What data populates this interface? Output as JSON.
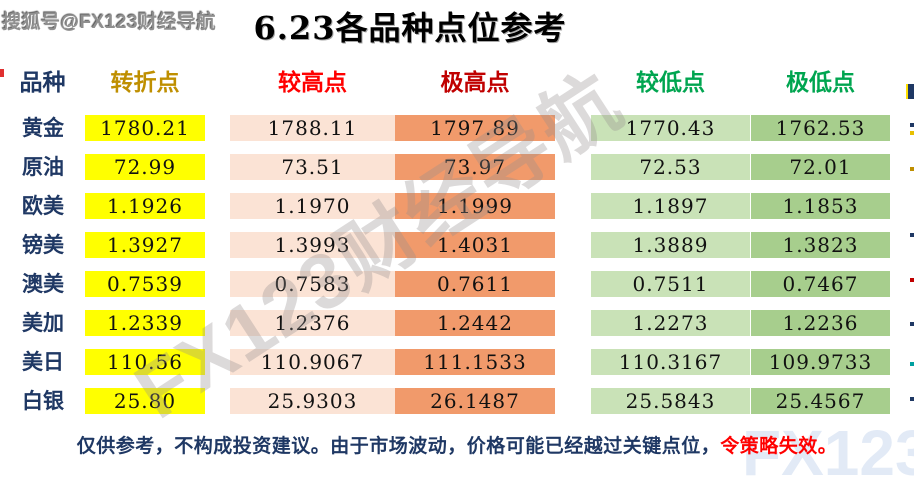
{
  "header": {
    "title": "6.23各品种点位参考"
  },
  "watermarks": {
    "sohu": "搜狐号@FX123财经导航",
    "diagonal": "FX123财经导航",
    "corner": "FX123"
  },
  "table": {
    "headers": {
      "variety": "品种",
      "turning": "转折点",
      "higher": "较高点",
      "extreme_high": "极高点",
      "lower": "较低点",
      "extreme_low": "极低点"
    },
    "rows": [
      {
        "variety": "黄金",
        "turning": "1780.21",
        "higher": "1788.11",
        "extreme_high": "1797.89",
        "lower": "1770.43",
        "extreme_low": "1762.53"
      },
      {
        "variety": "原油",
        "turning": "72.99",
        "higher": "73.51",
        "extreme_high": "73.97",
        "lower": "72.53",
        "extreme_low": "72.01"
      },
      {
        "variety": "欧美",
        "turning": "1.1926",
        "higher": "1.1970",
        "extreme_high": "1.1999",
        "lower": "1.1897",
        "extreme_low": "1.1853"
      },
      {
        "variety": "镑美",
        "turning": "1.3927",
        "higher": "1.3993",
        "extreme_high": "1.4031",
        "lower": "1.3889",
        "extreme_low": "1.3823"
      },
      {
        "variety": "澳美",
        "turning": "0.7539",
        "higher": "0.7583",
        "extreme_high": "0.7611",
        "lower": "0.7511",
        "extreme_low": "0.7467"
      },
      {
        "variety": "美加",
        "turning": "1.2339",
        "higher": "1.2376",
        "extreme_high": "1.2442",
        "lower": "1.2273",
        "extreme_low": "1.2236"
      },
      {
        "variety": "美日",
        "turning": "110.56",
        "higher": "110.9067",
        "extreme_high": "111.1533",
        "lower": "110.3167",
        "extreme_low": "109.9733"
      },
      {
        "variety": "白银",
        "turning": "25.80",
        "higher": "25.9303",
        "extreme_high": "26.1487",
        "lower": "25.5843",
        "extreme_low": "25.4567"
      }
    ]
  },
  "footer": {
    "text": "仅供参考，不构成投资建议。由于市场波动，价格可能已经越过关键点位，",
    "warning": "令策略失效。"
  },
  "colors": {
    "variety_text": "#1F3864",
    "turning_text": "#BF8F00",
    "higher_text": "#FF0000",
    "extreme_high_text": "#C00000",
    "lower_text": "#00A550",
    "extreme_low_text": "#00A550",
    "turning_bg": "#FFFF00",
    "higher_bg": "#FBE3D5",
    "extreme_high_bg": "#F19A6B",
    "lower_bg": "#C9E2B7",
    "extreme_low_bg": "#A7CE8D",
    "disclaimer_text": "#1F3864",
    "disclaimer_warning": "#FF0000"
  }
}
